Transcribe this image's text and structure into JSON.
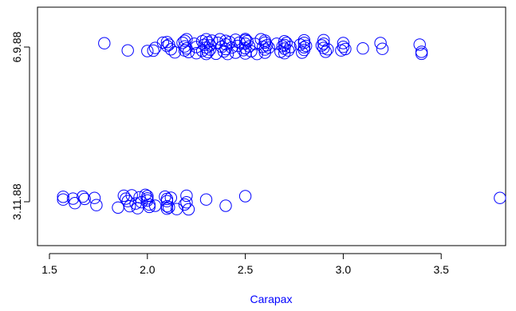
{
  "chart_data": {
    "type": "scatter",
    "title": "",
    "xlabel": "Carapax",
    "ylabel": "",
    "xlim": [
      1.5,
      3.9
    ],
    "x_ticks": [
      1.5,
      2.0,
      2.5,
      3.0,
      3.5
    ],
    "x_tick_labels": [
      "1.5",
      "2.0",
      "2.5",
      "3.0",
      "3.5"
    ],
    "y_categories": [
      "3.11.88",
      "6.9.88"
    ],
    "y_tick_labels": [
      "3.11.88",
      "6.9.88"
    ],
    "grid": false,
    "marker": "open-circle",
    "color": "#0000ff",
    "xlabel_color": "#0000ff",
    "series": [
      {
        "category": "6.9.88",
        "points": [
          {
            "x": 1.78,
            "j": 0.34
          },
          {
            "x": 1.9,
            "j": -0.3
          },
          {
            "x": 2.0,
            "j": -0.36
          },
          {
            "x": 2.03,
            "j": -0.32
          },
          {
            "x": 2.04,
            "j": -0.08
          },
          {
            "x": 2.08,
            "j": 0.4
          },
          {
            "x": 2.1,
            "j": 0.44
          },
          {
            "x": 2.1,
            "j": 0.1
          },
          {
            "x": 2.11,
            "j": 0.22
          },
          {
            "x": 2.12,
            "j": -0.2
          },
          {
            "x": 2.14,
            "j": -0.48
          },
          {
            "x": 2.18,
            "j": 0.38
          },
          {
            "x": 2.19,
            "j": 0.56
          },
          {
            "x": 2.19,
            "j": 0.06
          },
          {
            "x": 2.19,
            "j": -0.3
          },
          {
            "x": 2.2,
            "j": 0.7
          },
          {
            "x": 2.2,
            "j": -0.12
          },
          {
            "x": 2.21,
            "j": -0.45
          },
          {
            "x": 2.24,
            "j": 0.3
          },
          {
            "x": 2.25,
            "j": -0.55
          },
          {
            "x": 2.25,
            "j": 0.0
          },
          {
            "x": 2.28,
            "j": 0.52
          },
          {
            "x": 2.28,
            "j": -0.34
          },
          {
            "x": 2.29,
            "j": 0.2
          },
          {
            "x": 2.3,
            "j": 0.7
          },
          {
            "x": 2.3,
            "j": -0.62
          },
          {
            "x": 2.3,
            "j": -0.05
          },
          {
            "x": 2.31,
            "j": 0.42
          },
          {
            "x": 2.31,
            "j": -0.44
          },
          {
            "x": 2.32,
            "j": 0.15
          },
          {
            "x": 2.32,
            "j": -0.22
          },
          {
            "x": 2.33,
            "j": 0.58
          },
          {
            "x": 2.35,
            "j": -0.6
          },
          {
            "x": 2.36,
            "j": 0.38
          },
          {
            "x": 2.37,
            "j": 0.7
          },
          {
            "x": 2.38,
            "j": 0.02
          },
          {
            "x": 2.39,
            "j": -0.4
          },
          {
            "x": 2.4,
            "j": 0.56
          },
          {
            "x": 2.4,
            "j": 0.24
          },
          {
            "x": 2.4,
            "j": -0.18
          },
          {
            "x": 2.41,
            "j": -0.62
          },
          {
            "x": 2.42,
            "j": 0.44
          },
          {
            "x": 2.43,
            "j": -0.05
          },
          {
            "x": 2.45,
            "j": 0.66
          },
          {
            "x": 2.45,
            "j": -0.5
          },
          {
            "x": 2.46,
            "j": 0.1
          },
          {
            "x": 2.47,
            "j": 0.4
          },
          {
            "x": 2.49,
            "j": -0.28
          },
          {
            "x": 2.5,
            "j": 0.72
          },
          {
            "x": 2.5,
            "j": 0.62
          },
          {
            "x": 2.5,
            "j": 0.3
          },
          {
            "x": 2.5,
            "j": -0.1
          },
          {
            "x": 2.5,
            "j": -0.58
          },
          {
            "x": 2.51,
            "j": 0.52
          },
          {
            "x": 2.52,
            "j": 0.06
          },
          {
            "x": 2.53,
            "j": -0.38
          },
          {
            "x": 2.55,
            "j": 0.28
          },
          {
            "x": 2.56,
            "j": -0.62
          },
          {
            "x": 2.58,
            "j": 0.7
          },
          {
            "x": 2.59,
            "j": 0.02
          },
          {
            "x": 2.6,
            "j": 0.58
          },
          {
            "x": 2.6,
            "j": 0.4
          },
          {
            "x": 2.6,
            "j": -0.22
          },
          {
            "x": 2.6,
            "j": -0.5
          },
          {
            "x": 2.61,
            "j": 0.16
          },
          {
            "x": 2.62,
            "j": -0.05
          },
          {
            "x": 2.66,
            "j": 0.3
          },
          {
            "x": 2.68,
            "j": -0.42
          },
          {
            "x": 2.69,
            "j": 0.08
          },
          {
            "x": 2.7,
            "j": 0.52
          },
          {
            "x": 2.7,
            "j": 0.18
          },
          {
            "x": 2.7,
            "j": -0.14
          },
          {
            "x": 2.7,
            "j": -0.55
          },
          {
            "x": 2.71,
            "j": 0.38
          },
          {
            "x": 2.72,
            "j": -0.3
          },
          {
            "x": 2.73,
            "j": 0.0
          },
          {
            "x": 2.78,
            "j": 0.22
          },
          {
            "x": 2.79,
            "j": -0.5
          },
          {
            "x": 2.8,
            "j": 0.6
          },
          {
            "x": 2.8,
            "j": 0.38
          },
          {
            "x": 2.8,
            "j": -0.02
          },
          {
            "x": 2.8,
            "j": -0.26
          },
          {
            "x": 2.81,
            "j": 0.1
          },
          {
            "x": 2.89,
            "j": 0.14
          },
          {
            "x": 2.9,
            "j": 0.62
          },
          {
            "x": 2.9,
            "j": 0.3
          },
          {
            "x": 2.9,
            "j": -0.08
          },
          {
            "x": 2.91,
            "j": -0.42
          },
          {
            "x": 2.92,
            "j": -0.2
          },
          {
            "x": 2.99,
            "j": -0.3
          },
          {
            "x": 3.0,
            "j": 0.36
          },
          {
            "x": 3.0,
            "j": 0.02
          },
          {
            "x": 3.01,
            "j": -0.18
          },
          {
            "x": 3.1,
            "j": -0.12
          },
          {
            "x": 3.19,
            "j": 0.36
          },
          {
            "x": 3.2,
            "j": -0.16
          },
          {
            "x": 3.39,
            "j": 0.22
          },
          {
            "x": 3.4,
            "j": -0.42
          },
          {
            "x": 3.4,
            "j": -0.6
          }
        ]
      },
      {
        "category": "3.11.88",
        "points": [
          {
            "x": 1.57,
            "j": 0.44
          },
          {
            "x": 1.57,
            "j": 0.2
          },
          {
            "x": 1.62,
            "j": 0.28
          },
          {
            "x": 1.63,
            "j": -0.12
          },
          {
            "x": 1.67,
            "j": 0.46
          },
          {
            "x": 1.68,
            "j": 0.26
          },
          {
            "x": 1.73,
            "j": 0.34
          },
          {
            "x": 1.74,
            "j": -0.3
          },
          {
            "x": 1.85,
            "j": -0.52
          },
          {
            "x": 1.88,
            "j": 0.54
          },
          {
            "x": 1.89,
            "j": 0.28
          },
          {
            "x": 1.9,
            "j": 0.06
          },
          {
            "x": 1.91,
            "j": -0.4
          },
          {
            "x": 1.92,
            "j": 0.58
          },
          {
            "x": 1.94,
            "j": -0.16
          },
          {
            "x": 1.95,
            "j": -0.58
          },
          {
            "x": 1.96,
            "j": 0.4
          },
          {
            "x": 1.97,
            "j": -0.04
          },
          {
            "x": 1.99,
            "j": 0.62
          },
          {
            "x": 2.0,
            "j": 0.5
          },
          {
            "x": 2.0,
            "j": 0.3
          },
          {
            "x": 2.0,
            "j": 0.12
          },
          {
            "x": 2.01,
            "j": -0.26
          },
          {
            "x": 2.01,
            "j": -0.46
          },
          {
            "x": 2.04,
            "j": -0.36
          },
          {
            "x": 2.09,
            "j": 0.46
          },
          {
            "x": 2.1,
            "j": 0.26
          },
          {
            "x": 2.1,
            "j": 0.06
          },
          {
            "x": 2.1,
            "j": -0.4
          },
          {
            "x": 2.1,
            "j": -0.62
          },
          {
            "x": 2.11,
            "j": -0.5
          },
          {
            "x": 2.12,
            "j": 0.36
          },
          {
            "x": 2.15,
            "j": -0.66
          },
          {
            "x": 2.19,
            "j": -0.24
          },
          {
            "x": 2.2,
            "j": 0.54
          },
          {
            "x": 2.2,
            "j": -0.05
          },
          {
            "x": 2.21,
            "j": -0.68
          },
          {
            "x": 2.3,
            "j": 0.2
          },
          {
            "x": 2.4,
            "j": -0.36
          },
          {
            "x": 2.5,
            "j": 0.5
          },
          {
            "x": 3.8,
            "j": 0.34
          }
        ]
      }
    ]
  }
}
